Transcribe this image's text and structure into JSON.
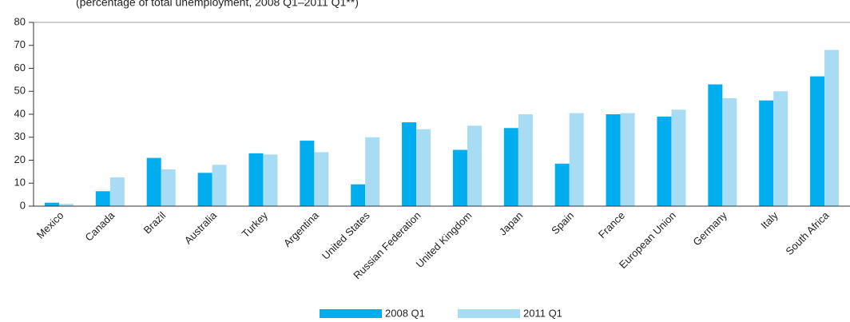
{
  "chart_data": {
    "type": "bar",
    "subtitle": "(percentage of total unemployment, 2008 Q1–2011 Q1**)",
    "categories": [
      "Mexico",
      "Canada",
      "Brazil",
      "Australia",
      "Turkey",
      "Argentina",
      "United States",
      "Russian Federation",
      "United Kingdom",
      "Japan",
      "Spain",
      "France",
      "European Union",
      "Germany",
      "Italy",
      "South Africa"
    ],
    "series": [
      {
        "name": "2008 Q1",
        "color": "#00aeef",
        "values": [
          1.5,
          6.5,
          21,
          14.5,
          23,
          28.5,
          9.5,
          36.5,
          24.5,
          34,
          18.5,
          40,
          39,
          53,
          46,
          56.5
        ]
      },
      {
        "name": "2011 Q1",
        "color": "#a8dcf5",
        "values": [
          1,
          12.5,
          16,
          18,
          22.5,
          23.5,
          30,
          33.5,
          35,
          40,
          40.5,
          40.5,
          42,
          47,
          50,
          68
        ]
      }
    ],
    "ylim": [
      0,
      80
    ],
    "yticks": [
      0,
      10,
      20,
      30,
      40,
      50,
      60,
      70,
      80
    ],
    "legend": "bottom"
  }
}
